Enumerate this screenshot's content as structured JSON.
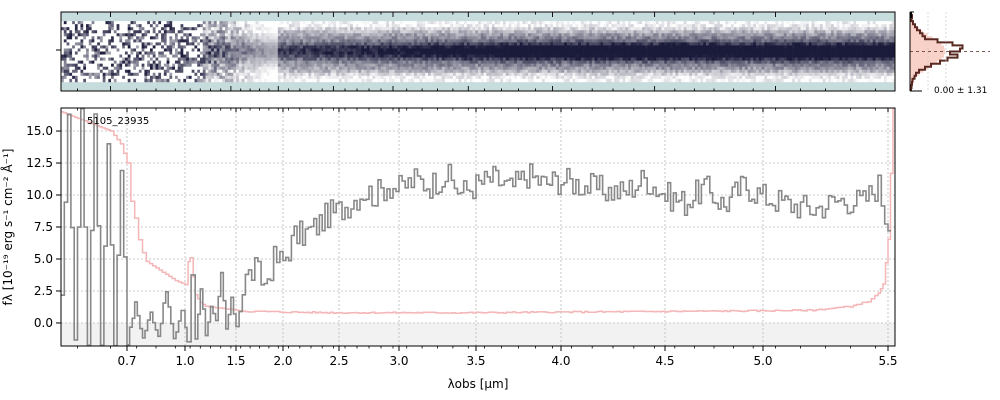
{
  "chart_data": [
    {
      "type": "heatmap",
      "panel": "2d-spectrum",
      "rows": 26,
      "cols": 300,
      "cmap_high": "#1a1a3a",
      "cmap_low": "#c7dcdc",
      "description": "2D spectrum cutout; noisy blue end, continuous trace along the centre"
    },
    {
      "type": "line",
      "panel": "cross-dispersion-profile",
      "annotation": "0.00 ± 1.31",
      "profile_color": "#5a2a22",
      "fill_color": "#f7c9bf",
      "rows": [
        0,
        1,
        2,
        3,
        4,
        5,
        6,
        7,
        8,
        9,
        10,
        11,
        12,
        13,
        14,
        15,
        16,
        17,
        18,
        19,
        20,
        21,
        22,
        23,
        24,
        25
      ],
      "model_width": [
        0.02,
        0.03,
        0.05,
        0.08,
        0.12,
        0.18,
        0.26,
        0.35,
        0.45,
        0.55,
        0.63,
        0.68,
        0.7,
        0.7,
        0.68,
        0.63,
        0.55,
        0.45,
        0.35,
        0.26,
        0.18,
        0.12,
        0.08,
        0.05,
        0.03,
        0.02
      ],
      "data_width": [
        0.02,
        0.04,
        0.03,
        0.06,
        0.1,
        0.14,
        0.2,
        0.25,
        0.3,
        0.55,
        0.85,
        1.05,
        1.0,
        0.8,
        0.95,
        0.75,
        0.6,
        0.42,
        0.3,
        0.18,
        0.12,
        0.09,
        0.05,
        0.04,
        0.03,
        0.02
      ]
    },
    {
      "type": "line",
      "panel": "1d-spectrum",
      "label": "5105_23935",
      "xlabel": "λobs [μm]",
      "ylabel": "fλ [10⁻¹⁹ erg s⁻¹ cm⁻² Å⁻¹]",
      "ylim": [
        -1.8,
        16.8
      ],
      "xlim": [
        0.5,
        5.52
      ],
      "x_scale": "spectral-resolution (nonlinear)",
      "xticks": [
        0.7,
        1.0,
        1.5,
        2.0,
        2.5,
        3.0,
        3.5,
        4.0,
        4.5,
        5.0,
        5.5
      ],
      "yticks": [
        0.0,
        2.5,
        5.0,
        7.5,
        10.0,
        12.5,
        15.0
      ],
      "grid": true,
      "x_anchor_wavelengths": [
        0.5,
        0.7,
        1.0,
        1.5,
        2.0,
        2.5,
        3.0,
        3.5,
        4.0,
        4.5,
        5.0,
        5.5
      ],
      "series": [
        {
          "role": "flux",
          "color": "#888888",
          "x": [
            0.5,
            0.52,
            0.54,
            0.56,
            0.58,
            0.6,
            0.62,
            0.64,
            0.66,
            0.68,
            0.7,
            0.74,
            0.78,
            0.82,
            0.86,
            0.9,
            0.94,
            0.98,
            1.02,
            1.06,
            1.1,
            1.15,
            1.2,
            1.25,
            1.3,
            1.35,
            1.4,
            1.45,
            1.5,
            1.6,
            1.7,
            1.8,
            1.9,
            2.0,
            2.1,
            2.2,
            2.3,
            2.4,
            2.5,
            2.6,
            2.7,
            2.8,
            2.9,
            3.0,
            3.1,
            3.2,
            3.3,
            3.4,
            3.5,
            3.6,
            3.7,
            3.8,
            3.9,
            4.0,
            4.1,
            4.2,
            4.3,
            4.4,
            4.5,
            4.6,
            4.7,
            4.8,
            4.9,
            5.0,
            5.1,
            5.2,
            5.3,
            5.4,
            5.46,
            5.5
          ],
          "y": [
            2.0,
            16.5,
            -1.5,
            16.8,
            -1.8,
            16.5,
            -1.7,
            14.0,
            -1.6,
            12.0,
            -1.5,
            1.5,
            -1.2,
            0.8,
            -1.0,
            2.5,
            -1.4,
            1.0,
            -1.6,
            3.8,
            -1.2,
            2.8,
            -0.8,
            1.2,
            0.0,
            3.8,
            -0.5,
            1.8,
            -0.2,
            3.5,
            4.2,
            3.0,
            5.0,
            4.8,
            6.8,
            7.0,
            7.6,
            8.5,
            8.8,
            9.5,
            10.3,
            10.0,
            10.8,
            10.5,
            11.2,
            10.8,
            11.6,
            10.2,
            10.8,
            11.3,
            10.5,
            11.6,
            10.9,
            11.2,
            10.8,
            10.4,
            10.2,
            11.3,
            10.0,
            9.4,
            10.6,
            9.2,
            10.8,
            9.9,
            9.3,
            8.9,
            9.6,
            9.5,
            10.8,
            7.2
          ]
        },
        {
          "role": "uncertainty",
          "color": "#f4b6b6",
          "x": [
            0.5,
            0.55,
            0.6,
            0.65,
            0.68,
            0.7,
            0.72,
            0.74,
            0.76,
            0.78,
            0.8,
            0.85,
            0.9,
            0.95,
            1.0,
            1.03,
            1.05,
            1.08,
            1.1,
            1.15,
            1.2,
            1.3,
            1.4,
            1.5,
            1.6,
            1.8,
            2.0,
            2.5,
            3.0,
            3.5,
            4.0,
            4.5,
            5.0,
            5.2,
            5.35,
            5.42,
            5.46,
            5.48,
            5.5,
            5.52
          ],
          "y": [
            16.5,
            16.0,
            15.5,
            15.0,
            14.0,
            12.5,
            9.5,
            8.2,
            6.5,
            5.5,
            4.8,
            4.3,
            3.8,
            3.3,
            3.0,
            4.8,
            5.1,
            3.6,
            2.2,
            1.6,
            1.3,
            1.2,
            1.1,
            1.0,
            0.9,
            0.9,
            0.85,
            0.8,
            0.8,
            0.8,
            0.85,
            0.9,
            0.95,
            1.0,
            1.3,
            1.7,
            2.3,
            3.0,
            6.5,
            16.8
          ]
        }
      ]
    }
  ]
}
